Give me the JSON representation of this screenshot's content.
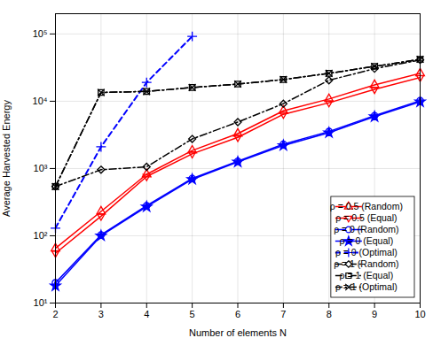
{
  "chart_data": {
    "type": "line",
    "x_label": "Number of elements N",
    "y_label": "Average Harvested Energy",
    "log": "y",
    "grid": true,
    "legend": "lower right",
    "x": [
      2,
      3,
      4,
      5,
      6,
      7,
      8,
      9,
      10
    ],
    "xlim": [
      2,
      10
    ],
    "xticks": [
      2,
      3,
      4,
      5,
      6,
      7,
      8,
      9,
      10
    ],
    "ylim": [
      10,
      200000
    ],
    "yticks": [
      {
        "value": 10,
        "label": "10¹"
      },
      {
        "value": 100,
        "label": "10²"
      },
      {
        "value": 1000,
        "label": "10³"
      },
      {
        "value": 10000,
        "label": "10⁴"
      },
      {
        "value": 100000,
        "label": "10⁵"
      }
    ],
    "series": [
      {
        "name": "ρ = 0.5 (Random)",
        "color": "red",
        "marker": "triangle_up",
        "line_style": "solid",
        "values": [
          65,
          230,
          820,
          1850,
          3300,
          7200,
          10800,
          17500,
          26000
        ]
      },
      {
        "name": "ρ = 0.5 (Equal)",
        "color": "red",
        "marker": "triangle_down",
        "line_style": "solid",
        "values": [
          55,
          195,
          760,
          1650,
          2900,
          6400,
          9500,
          15000,
          22500
        ]
      },
      {
        "name": "ρ = 0 (Random)",
        "color": "blue",
        "marker": "circle",
        "line_style": "solid",
        "values": [
          20,
          103,
          280,
          710,
          1280,
          2300,
          3550,
          6100,
          10200
        ]
      },
      {
        "name": "ρ = 0 (Equal)",
        "color": "blue",
        "marker": "star",
        "line_style": "solid",
        "values": [
          18,
          100,
          270,
          690,
          1250,
          2200,
          3400,
          5900,
          9800
        ]
      },
      {
        "name": "ρ = 0 (Optimal)",
        "color": "blue",
        "marker": "plus",
        "line_style": "dashed",
        "values": [
          130,
          2100,
          19000,
          92000,
          null,
          null,
          null,
          null,
          null
        ]
      },
      {
        "name": "ρ = 1 (Random)",
        "color": "black",
        "marker": "diamond",
        "line_style": "dashdot",
        "values": [
          540,
          960,
          1060,
          2750,
          4900,
          9200,
          20500,
          30500,
          41000
        ]
      },
      {
        "name": "ρ = 1 (Equal)",
        "color": "black",
        "marker": "square",
        "line_style": "dashdot",
        "values": [
          540,
          13500,
          14000,
          16000,
          18000,
          21000,
          26000,
          33000,
          42000
        ]
      },
      {
        "name": "ρ = 1 (Optimal)",
        "color": "black",
        "marker": "x",
        "line_style": "dashdot",
        "values": [
          540,
          13500,
          14000,
          16000,
          18000,
          21000,
          26000,
          33000,
          42000
        ]
      }
    ]
  }
}
